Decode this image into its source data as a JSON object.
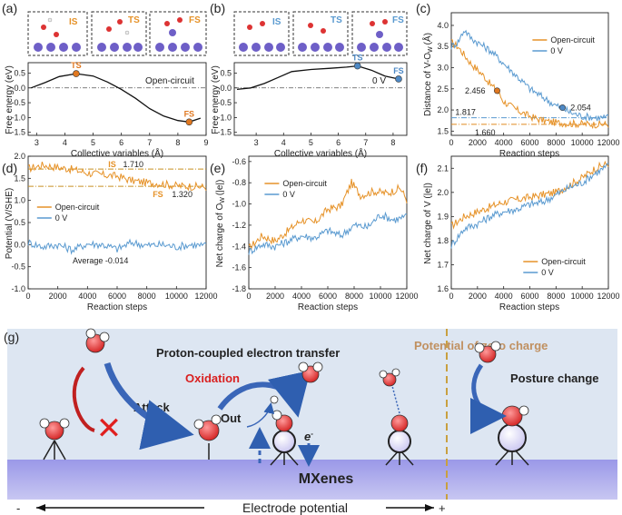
{
  "figure": {
    "panels": {
      "a": {
        "letter": "(a)",
        "condition": "Open-circuit",
        "states": [
          "IS",
          "TS",
          "FS"
        ],
        "xlabel": "Collective variables (Å)",
        "ylabel": "Free energy (eV)",
        "xticks": [
          "3",
          "4",
          "5",
          "6",
          "7",
          "8",
          "9"
        ],
        "yticks": [
          "0.5",
          "0.0",
          "-0.5",
          "-1.0",
          "-1.5"
        ]
      },
      "b": {
        "letter": "(b)",
        "condition": "0 V",
        "states": [
          "IS",
          "TS",
          "FS"
        ],
        "xlabel": "Collective variables (Å)",
        "ylabel": "Free energy (eV)",
        "xticks": [
          "3",
          "4",
          "5",
          "6",
          "7",
          "8"
        ],
        "yticks": [
          "0.5",
          "0.0",
          "-0.5",
          "-1.0",
          "-1.5"
        ]
      },
      "c": {
        "letter": "(c)",
        "ylabel_main": "Distance of V-O",
        "ylabel_sub": "W",
        "ylabel_unit": "(Å)",
        "xlabel": "Reaction steps",
        "xticks": [
          "0",
          "2000",
          "4000",
          "6000",
          "8000",
          "10000",
          "12000"
        ],
        "yticks": [
          "4.0",
          "3.5",
          "3.0",
          "2.5",
          "2.0",
          "1.5"
        ],
        "legend": [
          "Open-circuit",
          "0 V"
        ],
        "annotations": [
          "2.456",
          "2.054",
          "1.817",
          "1.660"
        ]
      },
      "d": {
        "letter": "(d)",
        "ylabel": "Potential (V/SHE)",
        "xlabel": "Reaction steps",
        "xticks": [
          "0",
          "2000",
          "4000",
          "6000",
          "8000",
          "10000",
          "12000"
        ],
        "yticks": [
          "2.0",
          "1.5",
          "1.0",
          "0.5",
          "0.0",
          "-0.5",
          "-1.0"
        ],
        "legend": [
          "Open-circuit",
          "0 V"
        ],
        "is_label": "IS",
        "is_value": "1.710",
        "fs_label": "FS",
        "fs_value": "1.320",
        "average": "Average -0.014"
      },
      "e": {
        "letter": "(e)",
        "ylabel_main": "Net charge of O",
        "ylabel_sub": "W",
        "ylabel_unit": "(|e|)",
        "xlabel": "Reaction steps",
        "xticks": [
          "0",
          "2000",
          "4000",
          "6000",
          "8000",
          "10000",
          "12000"
        ],
        "yticks": [
          "-0.6",
          "-0.8",
          "-1.0",
          "-1.2",
          "-1.4",
          "-1.6",
          "-1.8"
        ],
        "legend": [
          "Open-circuit",
          "0 V"
        ]
      },
      "f": {
        "letter": "(f)",
        "ylabel": "Net charge of V (|e|)",
        "xlabel": "Reaction steps",
        "xticks": [
          "0",
          "2000",
          "4000",
          "6000",
          "8000",
          "10000",
          "12000"
        ],
        "yticks": [
          "2.1",
          "2.0",
          "1.9",
          "1.8",
          "1.7",
          "1.6"
        ],
        "legend": [
          "Open-circuit",
          "0 V"
        ]
      },
      "g": {
        "letter": "(g)",
        "pcet": "Proton-coupled electron transfer",
        "pzc": "Potential of zero charge",
        "oxidation": "Oxidation",
        "attack": "Attack",
        "out": "Out",
        "electron": "e",
        "electron_sup": "-",
        "posture": "Posture change",
        "mxenes": "MXenes",
        "axis": "Electrode potential",
        "minus": "-",
        "plus": "+"
      }
    }
  },
  "chart_data": [
    {
      "type": "line",
      "panel": "a",
      "title": "Open-circuit",
      "xlabel": "Collective variables (Å)",
      "ylabel": "Free energy (eV)",
      "xlim": [
        2.7,
        9
      ],
      "ylim": [
        -1.6,
        0.85
      ],
      "series": [
        {
          "name": "Open-circuit",
          "x": [
            2.8,
            3.3,
            3.8,
            4.4,
            5.0,
            5.5,
            6.0,
            6.5,
            7.0,
            7.5,
            8.0,
            8.4,
            8.8
          ],
          "y": [
            0.0,
            0.18,
            0.38,
            0.48,
            0.4,
            0.2,
            -0.05,
            -0.35,
            -0.7,
            -0.95,
            -1.1,
            -1.15,
            -1.02
          ]
        }
      ],
      "points": [
        {
          "label": "TS",
          "x": 4.4,
          "y": 0.48
        },
        {
          "label": "FS",
          "x": 8.4,
          "y": -1.15
        }
      ]
    },
    {
      "type": "line",
      "panel": "b",
      "title": "0 V",
      "xlabel": "Collective variables (Å)",
      "ylabel": "Free energy (eV)",
      "xlim": [
        2.2,
        8.5
      ],
      "ylim": [
        -1.6,
        0.85
      ],
      "series": [
        {
          "name": "0 V",
          "x": [
            2.3,
            2.8,
            3.3,
            3.8,
            4.3,
            5.0,
            5.7,
            6.3,
            6.7,
            7.2,
            7.7,
            8.2
          ],
          "y": [
            -0.05,
            0.0,
            0.15,
            0.35,
            0.55,
            0.62,
            0.66,
            0.7,
            0.74,
            0.6,
            0.4,
            0.3
          ]
        }
      ],
      "points": [
        {
          "label": "TS",
          "x": 6.7,
          "y": 0.74
        },
        {
          "label": "FS",
          "x": 8.2,
          "y": 0.3
        }
      ]
    },
    {
      "type": "line",
      "panel": "c",
      "xlabel": "Reaction steps",
      "ylabel": "Distance of V-Ow (Å)",
      "xlim": [
        0,
        12000
      ],
      "ylim": [
        1.4,
        4.3
      ],
      "series": [
        {
          "name": "Open-circuit",
          "x": [
            0,
            500,
            1000,
            1500,
            2000,
            2500,
            3000,
            3500,
            4000,
            5000,
            6000,
            7000,
            8000,
            9000,
            10000,
            11000,
            12000
          ],
          "y": [
            3.6,
            3.5,
            3.3,
            3.1,
            2.95,
            2.8,
            2.6,
            2.456,
            2.2,
            2.0,
            1.85,
            1.75,
            1.7,
            1.68,
            1.67,
            1.66,
            1.66
          ]
        },
        {
          "name": "0 V",
          "x": [
            0,
            500,
            1000,
            1500,
            2000,
            3000,
            4000,
            5000,
            6000,
            7000,
            8000,
            8500,
            9000,
            10000,
            11000,
            12000
          ],
          "y": [
            3.5,
            3.6,
            3.9,
            3.7,
            3.6,
            3.4,
            3.1,
            2.8,
            2.5,
            2.3,
            2.1,
            2.054,
            1.95,
            1.85,
            1.82,
            1.82
          ]
        }
      ],
      "reference_lines": [
        {
          "y": 1.817,
          "color": "#5a9ad0"
        },
        {
          "y": 1.66,
          "color": "#e08a20"
        }
      ]
    },
    {
      "type": "line",
      "panel": "d",
      "xlabel": "Reaction steps",
      "ylabel": "Potential (V/SHE)",
      "xlim": [
        0,
        12000
      ],
      "ylim": [
        -1.0,
        2.0
      ],
      "series": [
        {
          "name": "Open-circuit",
          "x": [
            0,
            1000,
            2000,
            3000,
            4000,
            5000,
            6000,
            7000,
            8000,
            9000,
            10000,
            11000,
            12000
          ],
          "y": [
            1.72,
            1.8,
            1.75,
            1.7,
            1.62,
            1.58,
            1.55,
            1.45,
            1.4,
            1.38,
            1.33,
            1.32,
            1.3
          ]
        },
        {
          "name": "0 V",
          "x": [
            0,
            1000,
            2000,
            3000,
            4000,
            5000,
            6000,
            7000,
            8000,
            9000,
            10000,
            11000,
            12000
          ],
          "y": [
            0.05,
            -0.05,
            0.0,
            -0.12,
            0.02,
            0.0,
            -0.1,
            0.05,
            -0.02,
            0.0,
            -0.05,
            0.0,
            -0.03
          ]
        }
      ],
      "reference_lines": [
        {
          "y": 1.71,
          "label": "IS 1.710"
        },
        {
          "y": 1.32,
          "label": "FS 1.320"
        }
      ]
    },
    {
      "type": "line",
      "panel": "e",
      "xlabel": "Reaction steps",
      "ylabel": "Net charge of Ow (|e|)",
      "xlim": [
        0,
        12000
      ],
      "ylim": [
        -1.8,
        -0.55
      ],
      "series": [
        {
          "name": "Open-circuit",
          "x": [
            0,
            1000,
            2000,
            3000,
            4000,
            5000,
            6000,
            7000,
            7800,
            8500,
            9500,
            10500,
            11500,
            12000
          ],
          "y": [
            -1.42,
            -1.3,
            -1.35,
            -1.25,
            -1.15,
            -1.18,
            -1.05,
            -1.02,
            -0.8,
            -0.92,
            -0.88,
            -0.9,
            -0.85,
            -0.96
          ]
        },
        {
          "name": "0 V",
          "x": [
            0,
            1000,
            2000,
            3000,
            4000,
            5000,
            6000,
            7000,
            8000,
            9000,
            10000,
            11000,
            12000
          ],
          "y": [
            -1.45,
            -1.38,
            -1.4,
            -1.35,
            -1.3,
            -1.32,
            -1.25,
            -1.3,
            -1.2,
            -1.22,
            -1.1,
            -1.15,
            -1.12
          ]
        }
      ]
    },
    {
      "type": "line",
      "panel": "f",
      "xlabel": "Reaction steps",
      "ylabel": "Net charge of V (|e|)",
      "xlim": [
        0,
        12000
      ],
      "ylim": [
        1.6,
        2.15
      ],
      "series": [
        {
          "name": "Open-circuit",
          "x": [
            0,
            1000,
            2000,
            3000,
            4000,
            5000,
            6000,
            7000,
            8000,
            9000,
            10000,
            11000,
            12000
          ],
          "y": [
            1.86,
            1.9,
            1.92,
            1.94,
            1.96,
            1.97,
            1.98,
            1.99,
            2.0,
            2.03,
            2.06,
            2.1,
            2.12
          ]
        },
        {
          "name": "0 V",
          "x": [
            0,
            1000,
            2000,
            3000,
            4000,
            5000,
            6000,
            7000,
            8000,
            9000,
            10000,
            11000,
            12000
          ],
          "y": [
            1.78,
            1.85,
            1.87,
            1.9,
            1.92,
            1.93,
            1.95,
            1.96,
            1.99,
            2.02,
            2.04,
            2.08,
            2.11
          ]
        }
      ]
    }
  ],
  "colors": {
    "orange": "#e69228",
    "blue": "#5a9ad0",
    "fs_marker": "#e07820",
    "ts_blue": "#4d88c4",
    "surface": "#a9a6ec",
    "background_g": "#dde6f2",
    "red": "#d92020"
  }
}
